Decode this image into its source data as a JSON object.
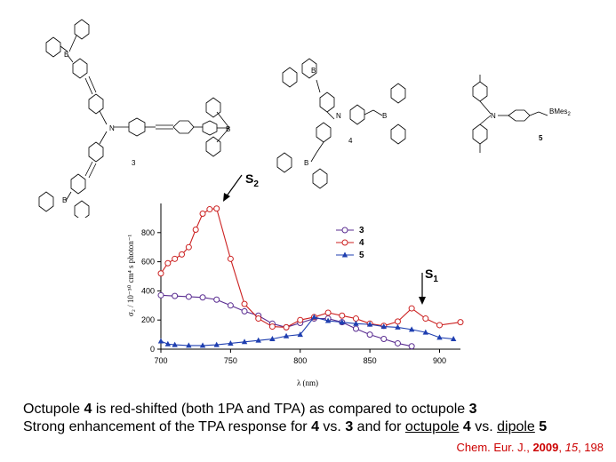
{
  "structures": {
    "compound_3_label": "3",
    "compound_4_label": "4",
    "compound_5_label": "5",
    "compound_5_group": "BMes",
    "compound_5_group_sub": "2",
    "atom_N": "N",
    "atom_B": "B"
  },
  "annotations": {
    "s2": "S",
    "s2_sub": "2",
    "s1": "S",
    "s1_sub": "1"
  },
  "chart_data": {
    "type": "line",
    "xlabel": "λ (nm)",
    "ylabel": "σ₂ / 10⁻⁵⁰ cm⁴ s photon⁻¹",
    "xlim": [
      700,
      915
    ],
    "ylim": [
      0,
      1000
    ],
    "xticks": [
      700,
      750,
      800,
      850,
      900
    ],
    "yticks": [
      0,
      200,
      400,
      600,
      800
    ],
    "legend_position": "top-right",
    "series": [
      {
        "name": "3",
        "color": "#5a2d91",
        "marker": "open-circle",
        "x": [
          700,
          710,
          720,
          730,
          740,
          750,
          760,
          770,
          780,
          790,
          800,
          810,
          820,
          830,
          840,
          850,
          860,
          870,
          880
        ],
        "y": [
          370,
          365,
          360,
          355,
          340,
          300,
          260,
          230,
          175,
          150,
          180,
          210,
          210,
          185,
          140,
          100,
          70,
          40,
          20
        ]
      },
      {
        "name": "4",
        "color": "#cc2222",
        "marker": "open-circle",
        "x": [
          700,
          705,
          710,
          715,
          720,
          725,
          730,
          735,
          740,
          750,
          760,
          770,
          780,
          790,
          800,
          810,
          820,
          830,
          840,
          850,
          860,
          870,
          880,
          890,
          900,
          915
        ],
        "y": [
          520,
          590,
          620,
          650,
          700,
          820,
          930,
          960,
          965,
          620,
          310,
          210,
          155,
          150,
          200,
          220,
          250,
          230,
          210,
          175,
          160,
          190,
          280,
          210,
          165,
          185
        ]
      },
      {
        "name": "5",
        "color": "#1f3fb0",
        "marker": "filled-triangle",
        "x": [
          700,
          705,
          710,
          720,
          730,
          740,
          750,
          760,
          770,
          780,
          790,
          800,
          810,
          820,
          830,
          840,
          850,
          860,
          870,
          880,
          890,
          900,
          910
        ],
        "y": [
          55,
          35,
          30,
          25,
          25,
          30,
          40,
          50,
          60,
          70,
          90,
          100,
          220,
          195,
          185,
          175,
          170,
          155,
          150,
          135,
          115,
          80,
          70
        ]
      }
    ]
  },
  "caption": {
    "line1_a": "Octupole ",
    "line1_b": "4",
    "line1_c": " is red-shifted (both 1PA and TPA) as compared to octupole ",
    "line1_d": "3",
    "line2_a": "Strong enhancement of the TPA response for ",
    "line2_b": "4",
    "line2_c": " vs. ",
    "line2_d": "3",
    "line2_e": " and for ",
    "line2_f": "octupole",
    "line2_g": " ",
    "line2_h": "4",
    "line2_i": " vs. ",
    "line2_j": "dipole",
    "line2_k": " ",
    "line2_l": "5"
  },
  "citation": {
    "journal": "Chem. Eur. J., ",
    "year": "2009",
    "sep1": ", ",
    "volume": "15",
    "sep2": ", 198"
  }
}
